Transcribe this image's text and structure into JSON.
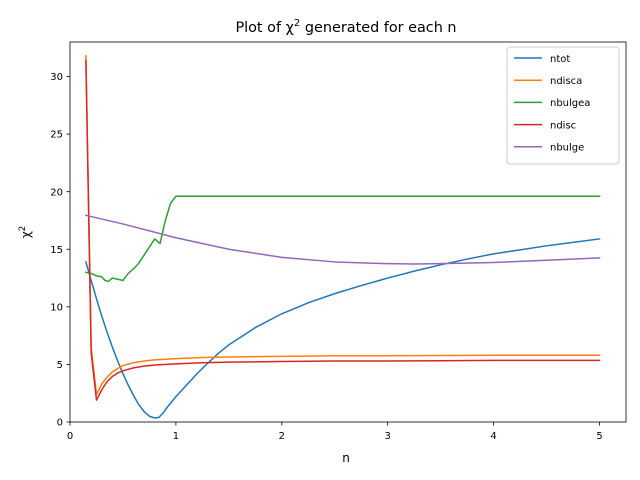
{
  "chart_data": {
    "type": "line",
    "title": "Plot of χ² generated for each n",
    "title_prefix": "Plot of χ",
    "title_exponent": "2",
    "title_suffix": " generated for each n",
    "xlabel": "n",
    "ylabel_base": "χ",
    "ylabel_exponent": "2",
    "xlim": [
      0,
      5.25
    ],
    "ylim": [
      0,
      33
    ],
    "xticks": [
      0,
      1,
      2,
      3,
      4,
      5
    ],
    "xtick_labels": [
      "0",
      "1",
      "2",
      "3",
      "4",
      "5"
    ],
    "yticks": [
      0,
      5,
      10,
      15,
      20,
      25,
      30
    ],
    "ytick_labels": [
      "0",
      "5",
      "10",
      "15",
      "20",
      "25",
      "30"
    ],
    "grid": false,
    "legend_position": "top-right",
    "series": [
      {
        "name": "ntot",
        "color": "#1f77b4",
        "x": [
          0.15,
          0.2,
          0.25,
          0.3,
          0.35,
          0.4,
          0.45,
          0.5,
          0.55,
          0.6,
          0.65,
          0.7,
          0.75,
          0.8,
          0.84,
          0.88,
          0.92,
          1.0,
          1.1,
          1.2,
          1.3,
          1.4,
          1.5,
          1.75,
          2.0,
          2.25,
          2.5,
          2.75,
          3.0,
          3.25,
          3.5,
          3.75,
          4.0,
          4.25,
          4.5,
          4.75,
          5.0
        ],
        "y": [
          13.9,
          12.3,
          10.7,
          9.2,
          7.8,
          6.5,
          5.3,
          4.2,
          3.2,
          2.3,
          1.5,
          0.9,
          0.5,
          0.35,
          0.4,
          0.8,
          1.3,
          2.2,
          3.2,
          4.2,
          5.1,
          5.95,
          6.7,
          8.2,
          9.4,
          10.35,
          11.15,
          11.85,
          12.5,
          13.1,
          13.65,
          14.15,
          14.6,
          14.95,
          15.3,
          15.6,
          15.9
        ]
      },
      {
        "name": "ndisca",
        "color": "#ff7f0e",
        "x": [
          0.15,
          0.2,
          0.25,
          0.3,
          0.35,
          0.4,
          0.45,
          0.5,
          0.6,
          0.7,
          0.8,
          1.0,
          1.25,
          1.5,
          2.0,
          2.5,
          3.0,
          3.5,
          4.0,
          4.5,
          5.0
        ],
        "y": [
          31.8,
          6.5,
          2.4,
          3.3,
          3.9,
          4.35,
          4.65,
          4.9,
          5.15,
          5.3,
          5.4,
          5.5,
          5.6,
          5.65,
          5.7,
          5.75,
          5.75,
          5.78,
          5.8,
          5.8,
          5.8
        ]
      },
      {
        "name": "nbulgea",
        "color": "#2ca02c",
        "x": [
          0.15,
          0.2,
          0.25,
          0.3,
          0.33,
          0.36,
          0.4,
          0.45,
          0.5,
          0.55,
          0.6,
          0.65,
          0.7,
          0.75,
          0.8,
          0.85,
          0.9,
          0.95,
          1.0,
          1.5,
          2.0,
          2.5,
          3.0,
          3.5,
          4.0,
          4.5,
          5.0
        ],
        "y": [
          13.0,
          12.9,
          12.7,
          12.6,
          12.3,
          12.2,
          12.5,
          12.4,
          12.3,
          12.9,
          13.3,
          13.8,
          14.5,
          15.2,
          15.9,
          15.5,
          17.5,
          19.0,
          19.6,
          19.6,
          19.6,
          19.6,
          19.6,
          19.6,
          19.6,
          19.6,
          19.6
        ]
      },
      {
        "name": "ndisc",
        "color": "#d62728",
        "x": [
          0.15,
          0.2,
          0.25,
          0.3,
          0.35,
          0.4,
          0.45,
          0.5,
          0.6,
          0.7,
          0.8,
          1.0,
          1.25,
          1.5,
          2.0,
          2.5,
          3.0,
          3.5,
          4.0,
          4.5,
          5.0
        ],
        "y": [
          31.4,
          6.0,
          1.9,
          2.8,
          3.5,
          3.95,
          4.25,
          4.45,
          4.7,
          4.85,
          4.95,
          5.05,
          5.15,
          5.2,
          5.25,
          5.3,
          5.3,
          5.32,
          5.35,
          5.35,
          5.35
        ]
      },
      {
        "name": "nbulge",
        "color": "#9467bd",
        "x": [
          0.15,
          0.5,
          1.0,
          1.5,
          2.0,
          2.5,
          3.0,
          3.25,
          3.5,
          4.0,
          4.5,
          5.0
        ],
        "y": [
          17.95,
          17.2,
          16.0,
          15.0,
          14.3,
          13.9,
          13.75,
          13.72,
          13.75,
          13.85,
          14.05,
          14.25
        ]
      }
    ]
  }
}
